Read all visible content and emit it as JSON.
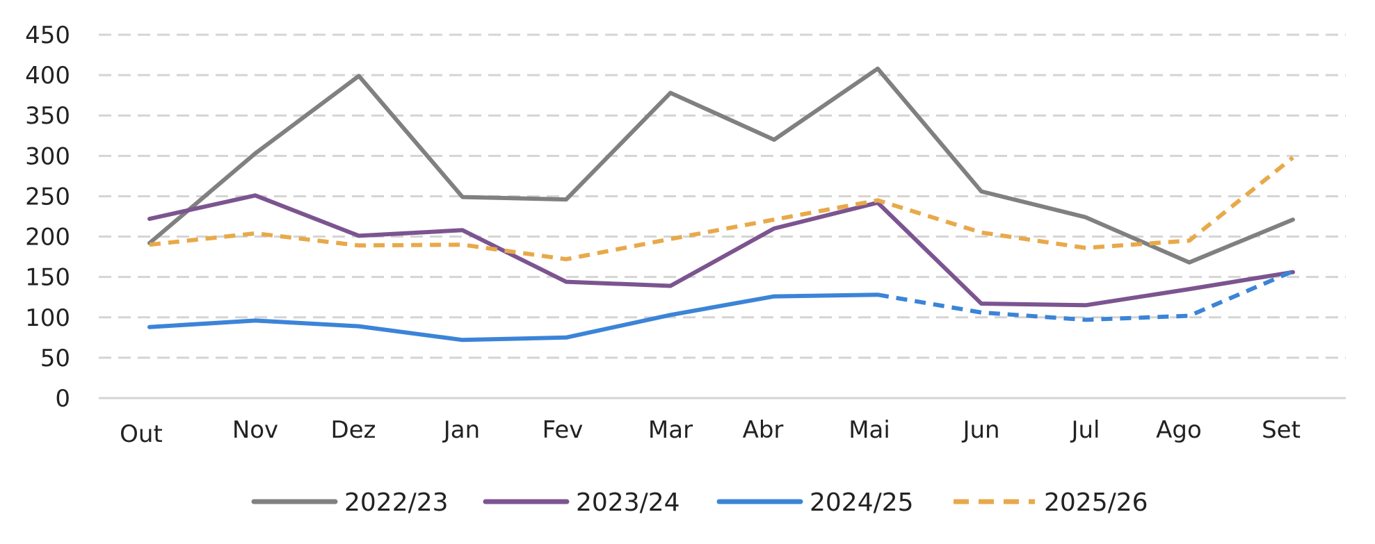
{
  "chart_data": {
    "type": "line",
    "categories": [
      "Out",
      "Nov",
      "Dez",
      "Jan",
      "Fev",
      "Mar",
      "Abr",
      "Mai",
      "Jun",
      "Jul",
      "Ago",
      "Set"
    ],
    "ylim": [
      0,
      450
    ],
    "yticks": [
      0,
      50,
      100,
      150,
      200,
      250,
      300,
      350,
      400,
      450
    ],
    "grid": "horizontal-dashed",
    "legend_position": "bottom",
    "series": [
      {
        "name": "2022/23",
        "color": "#808080",
        "values": [
          192,
          303,
          399,
          249,
          246,
          378,
          320,
          408,
          256,
          224,
          168,
          221
        ],
        "dashed_from_index": null
      },
      {
        "name": "2023/24",
        "color": "#7b5490",
        "values": [
          222,
          251,
          201,
          208,
          144,
          139,
          210,
          242,
          117,
          115,
          135,
          156
        ],
        "dashed_from_index": null
      },
      {
        "name": "2024/25",
        "color": "#3b84d8",
        "values": [
          88,
          96,
          89,
          72,
          75,
          103,
          126,
          128,
          106,
          97,
          102,
          157
        ],
        "dashed_from_index": 7
      },
      {
        "name": "2025/26",
        "color": "#e8a94a",
        "values": [
          190,
          204,
          189,
          190,
          172,
          197,
          221,
          245,
          205,
          186,
          195,
          298
        ],
        "dashed_from_index": 0
      }
    ]
  }
}
